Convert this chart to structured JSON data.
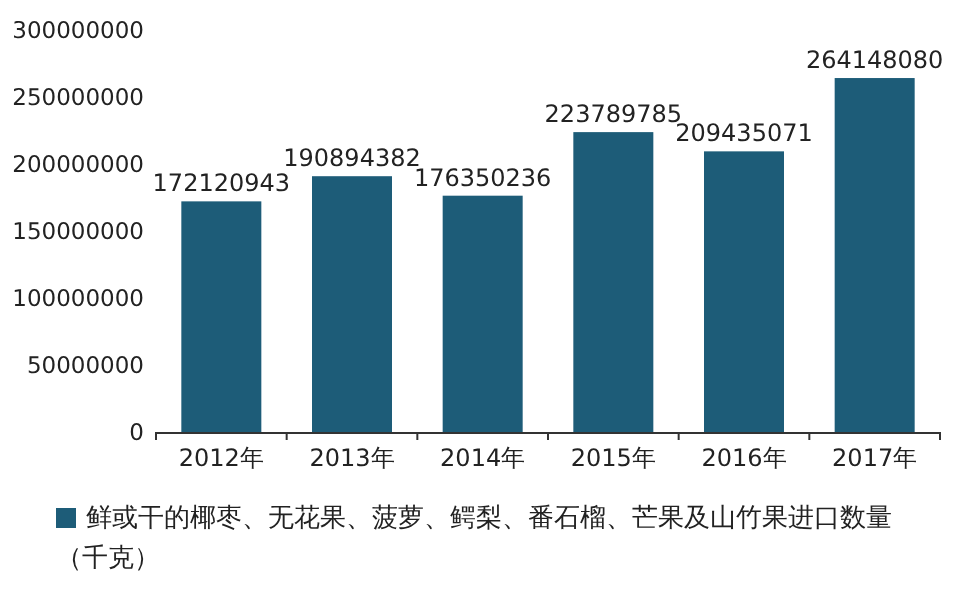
{
  "chart_data": {
    "type": "bar",
    "categories": [
      "2012年",
      "2013年",
      "2014年",
      "2015年",
      "2016年",
      "2017年"
    ],
    "series": [
      {
        "name": "鲜或干的椰枣、无花果、菠萝、鳄梨、番石榴、芒果及山竹果进口数量（千克）",
        "color": "#1d5c78",
        "values": [
          172120943,
          190894382,
          176350236,
          223789785,
          209435071,
          264148080
        ]
      }
    ],
    "ylim": [
      0,
      300000000
    ],
    "yticks": [
      0,
      50000000,
      100000000,
      150000000,
      200000000,
      250000000,
      300000000
    ],
    "data_labels": true,
    "legend": "bottom"
  }
}
